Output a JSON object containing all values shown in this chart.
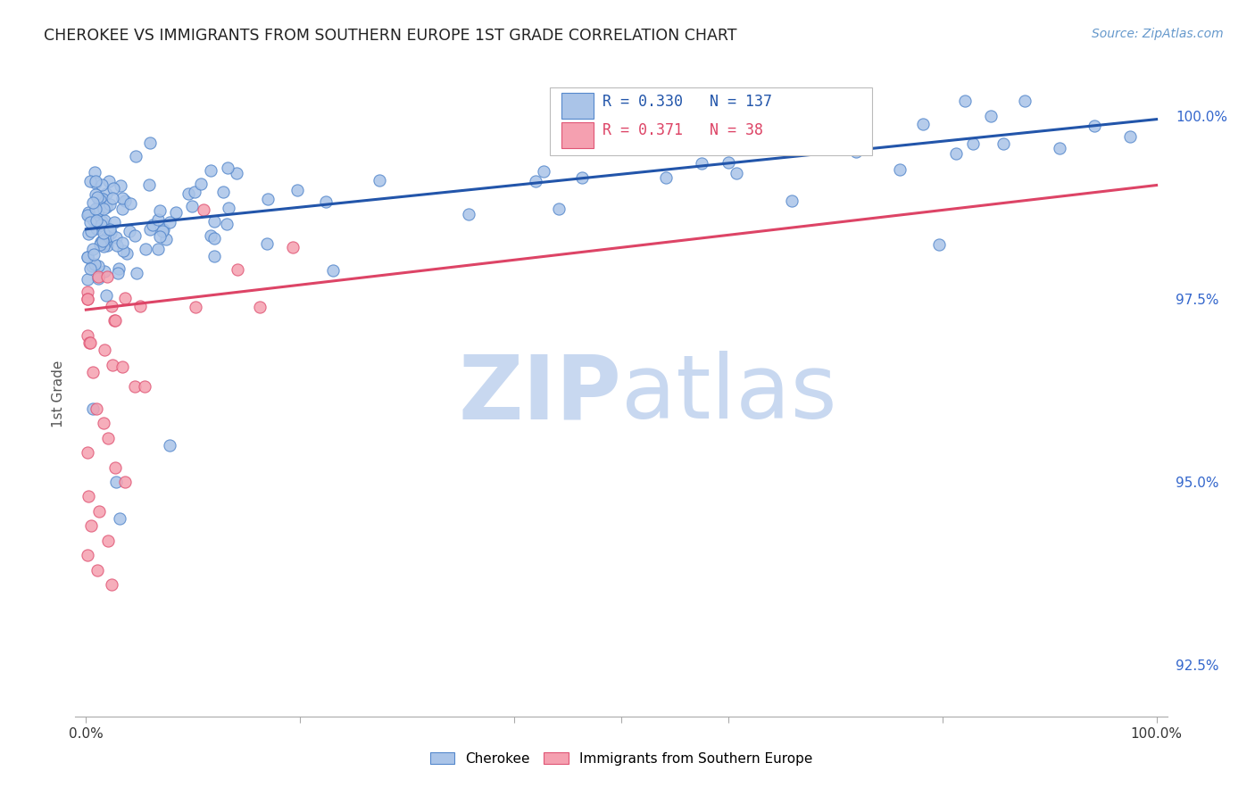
{
  "title": "CHEROKEE VS IMMIGRANTS FROM SOUTHERN EUROPE 1ST GRADE CORRELATION CHART",
  "source": "Source: ZipAtlas.com",
  "ylabel": "1st Grade",
  "legend_blue_r": "0.330",
  "legend_blue_n": "137",
  "legend_pink_r": "0.371",
  "legend_pink_n": "38",
  "blue_scatter_color": "#aac4e8",
  "blue_edge_color": "#5588cc",
  "pink_scatter_color": "#f5a0b0",
  "pink_edge_color": "#e05575",
  "blue_line_color": "#2255aa",
  "pink_line_color": "#dd4466",
  "watermark_zip_color": "#c8d8f0",
  "watermark_atlas_color": "#c8d8f0",
  "bg_color": "#FFFFFF",
  "grid_color": "#cccccc",
  "right_tick_color": "#3366cc",
  "title_color": "#222222",
  "source_color": "#6699cc",
  "ylabel_color": "#555555",
  "xlim": [
    -0.01,
    1.01
  ],
  "ylim": [
    0.918,
    1.006
  ],
  "yticks": [
    1.0,
    0.975,
    0.95,
    0.925
  ],
  "ytick_labels": [
    "100.0%",
    "97.5%",
    "95.0%",
    "92.5%"
  ],
  "blue_line_x0": 0.0,
  "blue_line_x1": 1.0,
  "blue_line_y0": 0.9845,
  "blue_line_y1": 0.9995,
  "pink_line_x0": 0.0,
  "pink_line_x1": 1.0,
  "pink_line_y0": 0.9735,
  "pink_line_y1": 0.9905
}
